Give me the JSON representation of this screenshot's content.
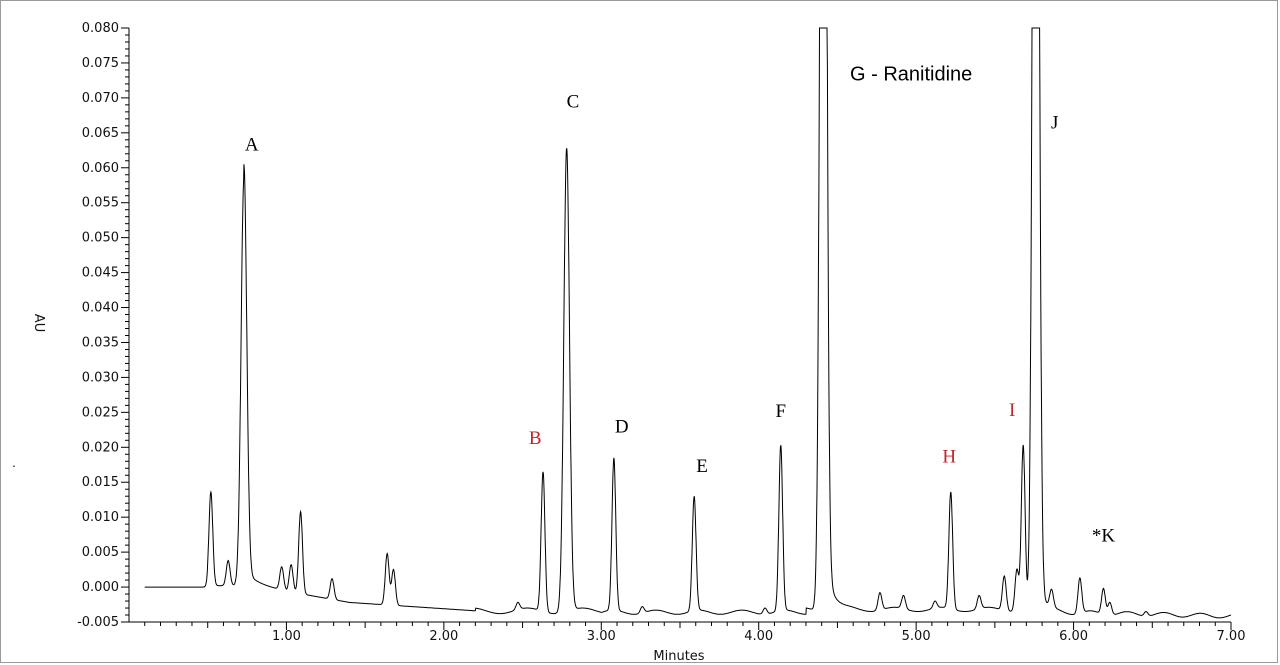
{
  "chart_data": {
    "type": "line",
    "xlabel": "Minutes",
    "ylabel": "AU",
    "xlim": [
      0,
      7.0
    ],
    "ylim": [
      -0.005,
      0.08
    ],
    "x_ticks": [
      "1.00",
      "2.00",
      "3.00",
      "4.00",
      "5.00",
      "6.00",
      "7.00"
    ],
    "y_ticks": [
      "-0.005",
      "0.000",
      "0.005",
      "0.010",
      "0.015",
      "0.020",
      "0.025",
      "0.030",
      "0.035",
      "0.040",
      "0.045",
      "0.050",
      "0.055",
      "0.060",
      "0.065",
      "0.070",
      "0.075",
      "0.080"
    ],
    "grid": false,
    "line_color": "#000000",
    "peaks": [
      {
        "x": 0.52,
        "y": 0.0136
      },
      {
        "x": 0.63,
        "y": 0.0038
      },
      {
        "x": 0.73,
        "y": 0.0585
      },
      {
        "x": 0.97,
        "y": 0.0028
      },
      {
        "x": 1.03,
        "y": 0.0032
      },
      {
        "x": 1.09,
        "y": 0.0108
      },
      {
        "x": 1.29,
        "y": 0.0012
      },
      {
        "x": 1.64,
        "y": 0.0048
      },
      {
        "x": 1.68,
        "y": 0.0025
      },
      {
        "x": 2.47,
        "y": -0.0022
      },
      {
        "x": 2.63,
        "y": 0.0165
      },
      {
        "x": 2.78,
        "y": 0.0628
      },
      {
        "x": 3.08,
        "y": 0.0185
      },
      {
        "x": 3.26,
        "y": -0.0028
      },
      {
        "x": 3.59,
        "y": 0.013
      },
      {
        "x": 4.04,
        "y": -0.003
      },
      {
        "x": 4.14,
        "y": 0.0203
      },
      {
        "x": 4.41,
        "y": 0.2
      },
      {
        "x": 4.77,
        "y": -0.0008
      },
      {
        "x": 4.92,
        "y": -0.0012
      },
      {
        "x": 5.12,
        "y": -0.002
      },
      {
        "x": 5.22,
        "y": 0.0136
      },
      {
        "x": 5.4,
        "y": -0.0012
      },
      {
        "x": 5.56,
        "y": 0.0016
      },
      {
        "x": 5.64,
        "y": 0.0025
      },
      {
        "x": 5.68,
        "y": 0.0203
      },
      {
        "x": 5.76,
        "y": 0.2
      },
      {
        "x": 5.86,
        "y": -0.0008
      },
      {
        "x": 6.04,
        "y": 0.0013
      },
      {
        "x": 6.19,
        "y": -0.0002
      },
      {
        "x": 6.23,
        "y": -0.0022
      },
      {
        "x": 6.46,
        "y": -0.0035
      }
    ],
    "annotations": [
      {
        "text": "A",
        "x": 0.78,
        "y": 0.0625,
        "color": "#000000"
      },
      {
        "text": "B",
        "x": 2.58,
        "y": 0.0205,
        "color": "#c0262b"
      },
      {
        "text": "C",
        "x": 2.82,
        "y": 0.0686,
        "color": "#000000"
      },
      {
        "text": "D",
        "x": 3.13,
        "y": 0.0221,
        "color": "#000000"
      },
      {
        "text": "E",
        "x": 3.64,
        "y": 0.0165,
        "color": "#000000"
      },
      {
        "text": "F",
        "x": 4.14,
        "y": 0.0243,
        "color": "#000000"
      },
      {
        "text": "G - Ranitidine",
        "x": 4.58,
        "y": 0.0725,
        "color": "#000000"
      },
      {
        "text": "H",
        "x": 5.21,
        "y": 0.0178,
        "color": "#c0262b"
      },
      {
        "text": "I",
        "x": 5.61,
        "y": 0.0245,
        "color": "#c0262b"
      },
      {
        "text": "J",
        "x": 5.88,
        "y": 0.0656,
        "color": "#000000"
      },
      {
        "text": "*K",
        "x": 6.19,
        "y": 0.0065,
        "color": "#000000"
      }
    ]
  },
  "stray_mark": "."
}
